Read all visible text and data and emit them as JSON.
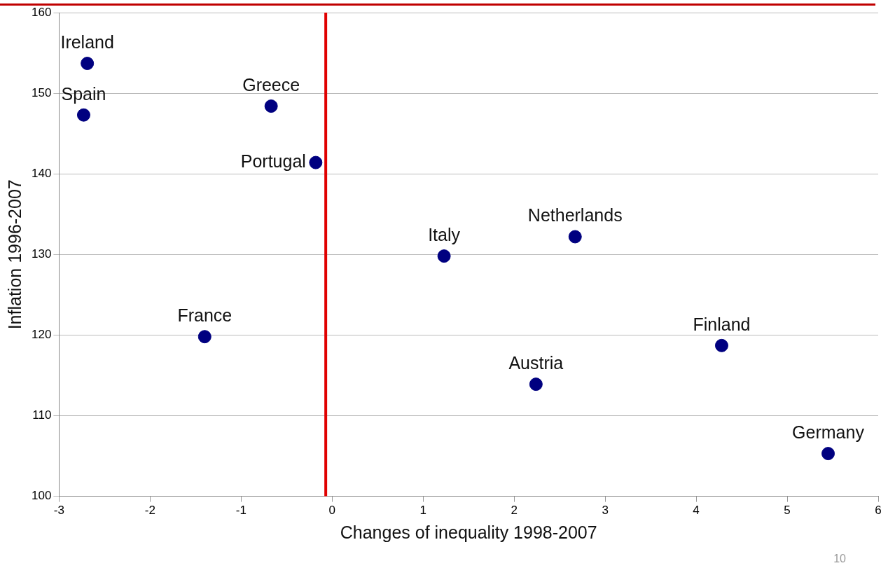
{
  "chart_data": {
    "type": "scatter",
    "xlabel": "Changes of inequality 1998-2007",
    "ylabel": "Inflation 1996-2007",
    "x": [
      -2.69,
      -2.73,
      -0.67,
      -0.18,
      1.23,
      2.67,
      -1.4,
      2.24,
      4.28,
      5.45
    ],
    "values": [
      153.7,
      147.3,
      148.4,
      141.4,
      129.8,
      132.2,
      119.8,
      113.9,
      118.7,
      105.3
    ],
    "color": "#000080",
    "marker": "circle",
    "xlim": [
      -3,
      6
    ],
    "xticks": [
      -3,
      -2,
      -1,
      0,
      1,
      2,
      3,
      4,
      5,
      6
    ],
    "ylim": [
      100,
      160
    ],
    "yticks": [
      100,
      110,
      120,
      130,
      140,
      150,
      160
    ],
    "grid": "y",
    "legend": false,
    "ref_lines": [
      {
        "axis": "x",
        "value": -0.07,
        "color": "#e00000"
      }
    ],
    "annotations": [
      {
        "text": "Ireland",
        "x": -2.69,
        "y": 153.7
      },
      {
        "text": "Spain",
        "x": -2.73,
        "y": 147.3
      },
      {
        "text": "Greece",
        "x": -0.67,
        "y": 148.4
      },
      {
        "text": "Portugal",
        "x": -0.18,
        "y": 141.4
      },
      {
        "text": "Italy",
        "x": 1.23,
        "y": 129.8
      },
      {
        "text": "Netherlands",
        "x": 2.67,
        "y": 132.2
      },
      {
        "text": "France",
        "x": -1.4,
        "y": 119.8
      },
      {
        "text": "Austria",
        "x": 2.24,
        "y": 113.9
      },
      {
        "text": "Finland",
        "x": 4.28,
        "y": 118.7
      },
      {
        "text": "Germany",
        "x": 5.45,
        "y": 105.3
      },
      "10"
    ]
  }
}
